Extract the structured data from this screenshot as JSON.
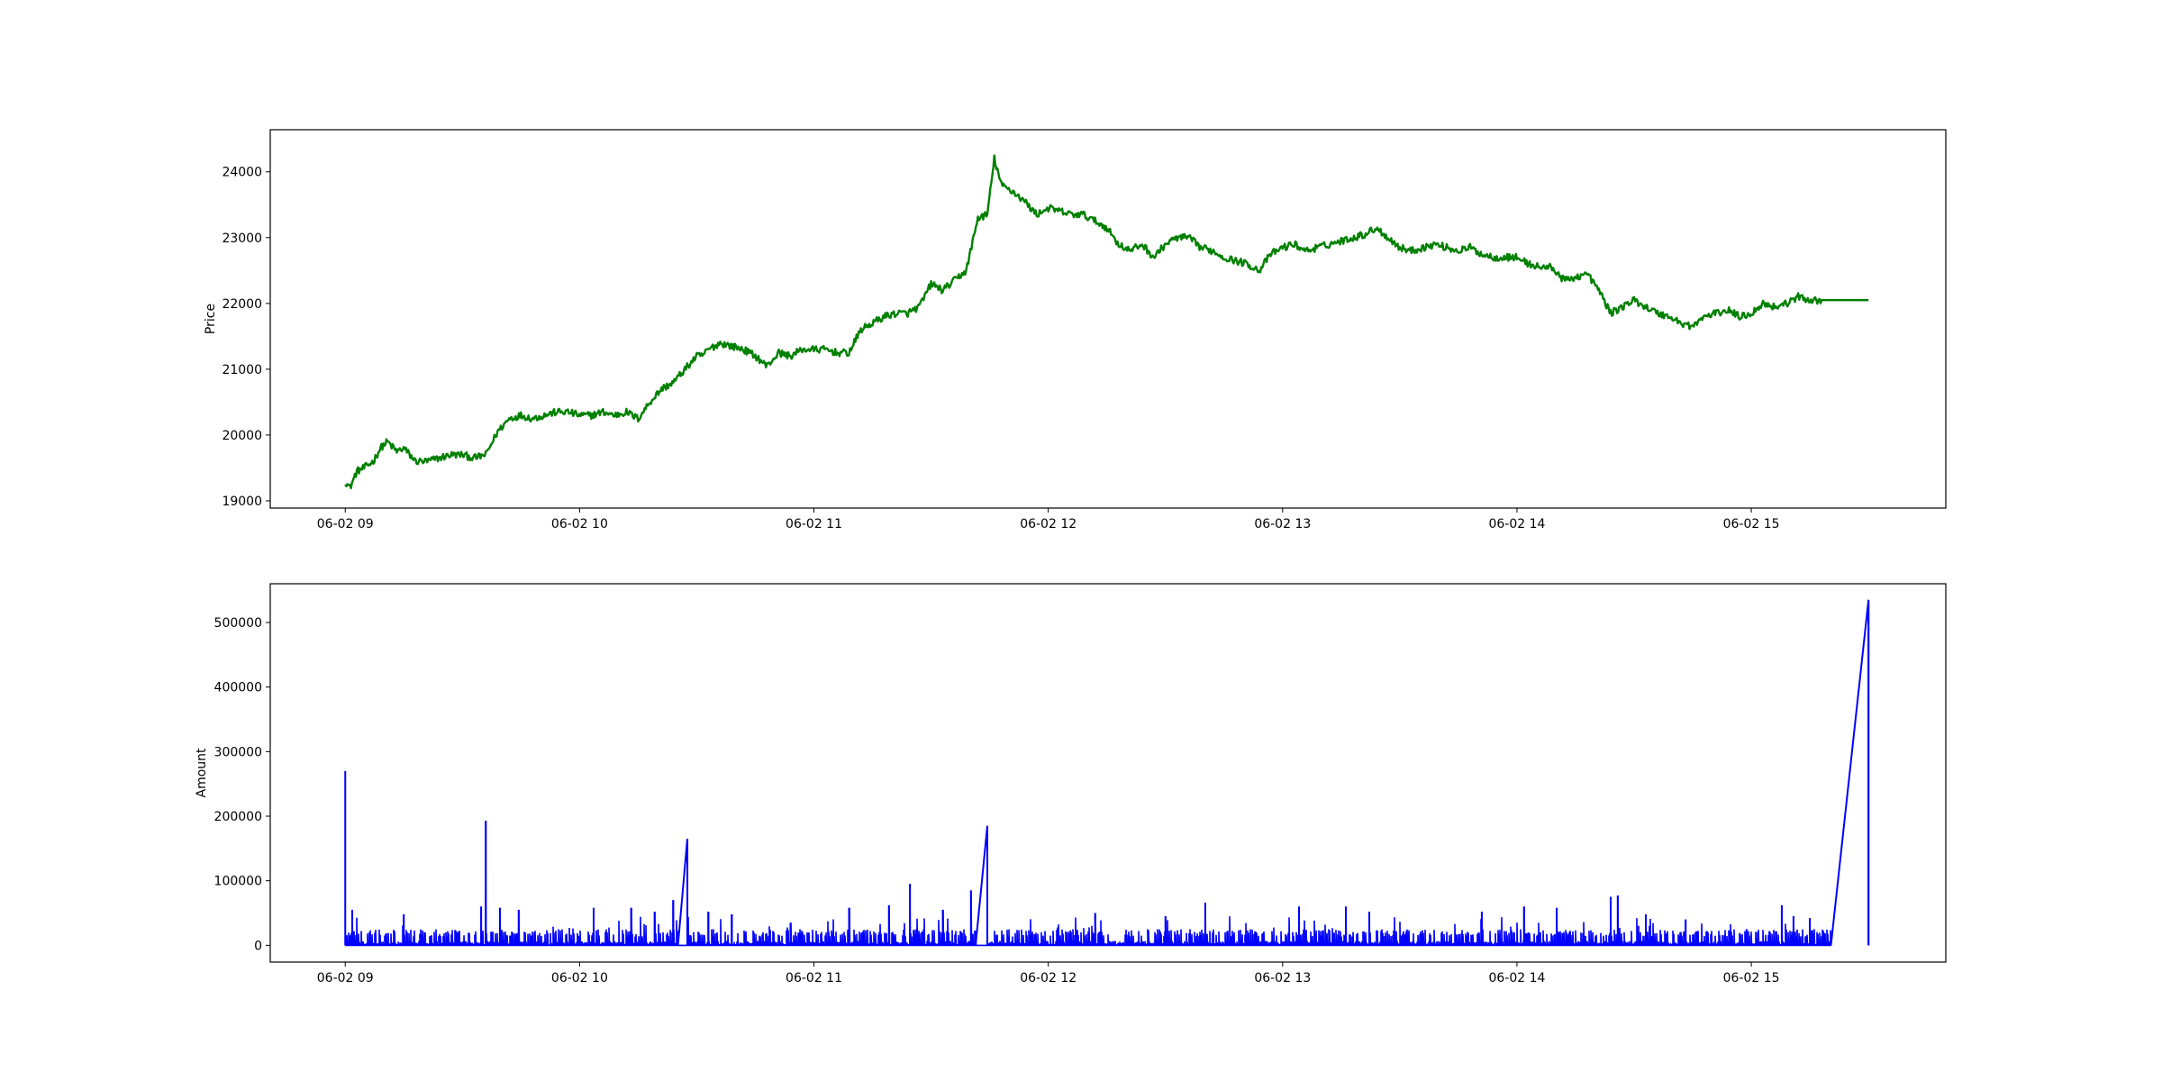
{
  "chart_data": [
    {
      "type": "line",
      "title": "",
      "xlabel": "",
      "ylabel": "Price",
      "x_tick_labels": [
        "06-02 09",
        "06-02 10",
        "06-02 11",
        "06-02 12",
        "06-02 13",
        "06-02 14",
        "06-02 15"
      ],
      "x_tick_hours": [
        9,
        10,
        11,
        12,
        13,
        14,
        15
      ],
      "xlim_hours": [
        8.68,
        15.83
      ],
      "yticks": [
        19000,
        20000,
        21000,
        22000,
        23000,
        24000
      ],
      "ylim": [
        18890,
        24640
      ],
      "grid": false,
      "series": [
        {
          "color": "#008000",
          "x_hours": [
            9.0,
            9.02,
            9.05,
            9.08,
            9.12,
            9.15,
            9.18,
            9.22,
            9.25,
            9.3,
            9.35,
            9.4,
            9.45,
            9.5,
            9.55,
            9.6,
            9.65,
            9.7,
            9.75,
            9.8,
            9.85,
            9.9,
            9.95,
            10.0,
            10.05,
            10.1,
            10.15,
            10.2,
            10.25,
            10.3,
            10.35,
            10.4,
            10.45,
            10.5,
            10.52,
            10.55,
            10.6,
            10.65,
            10.7,
            10.75,
            10.8,
            10.85,
            10.9,
            10.95,
            11.0,
            11.05,
            11.1,
            11.15,
            11.2,
            11.25,
            11.3,
            11.35,
            11.4,
            11.45,
            11.5,
            11.55,
            11.6,
            11.65,
            11.7,
            11.74,
            11.77,
            11.8,
            11.85,
            11.9,
            11.95,
            12.0,
            12.05,
            12.1,
            12.15,
            12.2,
            12.25,
            12.3,
            12.35,
            12.4,
            12.45,
            12.5,
            12.55,
            12.6,
            12.65,
            12.7,
            12.75,
            12.8,
            12.85,
            12.9,
            12.95,
            13.0,
            13.05,
            13.1,
            13.15,
            13.2,
            13.25,
            13.3,
            13.35,
            13.4,
            13.45,
            13.5,
            13.55,
            13.6,
            13.65,
            13.7,
            13.75,
            13.8,
            13.85,
            13.9,
            13.95,
            14.0,
            14.05,
            14.1,
            14.15,
            14.2,
            14.25,
            14.3,
            14.35,
            14.4,
            14.45,
            14.5,
            14.55,
            14.6,
            14.65,
            14.7,
            14.75,
            14.8,
            14.85,
            14.9,
            14.95,
            15.0,
            15.05,
            15.1,
            15.15,
            15.2,
            15.25,
            15.3,
            15.35,
            15.5
          ],
          "values": [
            19300,
            19200,
            19450,
            19500,
            19600,
            19800,
            19900,
            19750,
            19800,
            19600,
            19600,
            19650,
            19700,
            19700,
            19650,
            19700,
            20050,
            20250,
            20300,
            20250,
            20300,
            20350,
            20350,
            20300,
            20300,
            20350,
            20300,
            20350,
            20250,
            20500,
            20700,
            20800,
            21000,
            21200,
            21200,
            21300,
            21400,
            21350,
            21300,
            21200,
            21050,
            21250,
            21200,
            21300,
            21300,
            21300,
            21250,
            21250,
            21600,
            21700,
            21800,
            21850,
            21850,
            21950,
            22300,
            22200,
            22350,
            22500,
            23300,
            23350,
            24200,
            23800,
            23700,
            23550,
            23350,
            23450,
            23400,
            23350,
            23350,
            23250,
            23150,
            22900,
            22800,
            22900,
            22700,
            22900,
            23000,
            23000,
            22850,
            22800,
            22700,
            22650,
            22600,
            22500,
            22750,
            22850,
            22900,
            22800,
            22850,
            22900,
            22950,
            23000,
            23050,
            23150,
            23000,
            22850,
            22800,
            22850,
            22900,
            22850,
            22800,
            22850,
            22750,
            22700,
            22700,
            22700,
            22600,
            22550,
            22550,
            22350,
            22400,
            22450,
            22200,
            21850,
            21950,
            22050,
            21950,
            21850,
            21800,
            21700,
            21650,
            21800,
            21850,
            21900,
            21800,
            21850,
            22000,
            21950,
            22000,
            22100,
            22050,
            22050,
            22050,
            22050
          ]
        }
      ]
    },
    {
      "type": "line",
      "title": "",
      "xlabel": "",
      "ylabel": "Amount",
      "x_tick_labels": [
        "06-02 09",
        "06-02 10",
        "06-02 11",
        "06-02 12",
        "06-02 13",
        "06-02 14",
        "06-02 15"
      ],
      "x_tick_hours": [
        9,
        10,
        11,
        12,
        13,
        14,
        15
      ],
      "xlim_hours": [
        8.68,
        15.83
      ],
      "yticks": [
        0,
        100000,
        200000,
        300000,
        400000,
        500000
      ],
      "ylim": [
        -26000,
        560000
      ],
      "grid": false,
      "series": [
        {
          "color": "#0000ff",
          "spikes": [
            {
              "x_hours": 9.0,
              "value": 270000
            },
            {
              "x_hours": 9.03,
              "value": 55000
            },
            {
              "x_hours": 9.25,
              "value": 48000
            },
            {
              "x_hours": 9.58,
              "value": 60000
            },
            {
              "x_hours": 9.6,
              "value": 193000
            },
            {
              "x_hours": 9.66,
              "value": 58000
            },
            {
              "x_hours": 9.74,
              "value": 55000
            },
            {
              "x_hours": 10.06,
              "value": 58000
            },
            {
              "x_hours": 10.22,
              "value": 58000
            },
            {
              "x_hours": 10.32,
              "value": 52000
            },
            {
              "x_hours": 10.4,
              "value": 70000
            },
            {
              "x_hours": 10.46,
              "value": 165000
            },
            {
              "x_hours": 10.55,
              "value": 52000
            },
            {
              "x_hours": 10.65,
              "value": 48000
            },
            {
              "x_hours": 10.9,
              "value": 35000
            },
            {
              "x_hours": 11.15,
              "value": 58000
            },
            {
              "x_hours": 11.32,
              "value": 62000
            },
            {
              "x_hours": 11.41,
              "value": 95000
            },
            {
              "x_hours": 11.55,
              "value": 55000
            },
            {
              "x_hours": 11.67,
              "value": 85000
            },
            {
              "x_hours": 11.74,
              "value": 185000
            },
            {
              "x_hours": 12.2,
              "value": 50000
            },
            {
              "x_hours": 12.5,
              "value": 45000
            },
            {
              "x_hours": 12.67,
              "value": 66000
            },
            {
              "x_hours": 13.07,
              "value": 60000
            },
            {
              "x_hours": 13.27,
              "value": 60000
            },
            {
              "x_hours": 13.37,
              "value": 52000
            },
            {
              "x_hours": 13.85,
              "value": 52000
            },
            {
              "x_hours": 14.03,
              "value": 60000
            },
            {
              "x_hours": 14.17,
              "value": 58000
            },
            {
              "x_hours": 14.4,
              "value": 75000
            },
            {
              "x_hours": 14.43,
              "value": 77000
            },
            {
              "x_hours": 14.55,
              "value": 48000
            },
            {
              "x_hours": 14.72,
              "value": 40000
            },
            {
              "x_hours": 14.98,
              "value": 25000
            },
            {
              "x_hours": 15.13,
              "value": 62000
            },
            {
              "x_hours": 15.18,
              "value": 45000
            },
            {
              "x_hours": 15.25,
              "value": 42000
            },
            {
              "x_hours": 15.5,
              "value": 535000
            }
          ],
          "gaps_hours": [
            [
              10.42,
              10.46
            ],
            [
              11.69,
              11.74
            ],
            [
              15.34,
              15.5
            ]
          ],
          "start_hours": 9.0,
          "end_active_hours": 15.34,
          "background_amplitude": 25000
        }
      ]
    }
  ]
}
